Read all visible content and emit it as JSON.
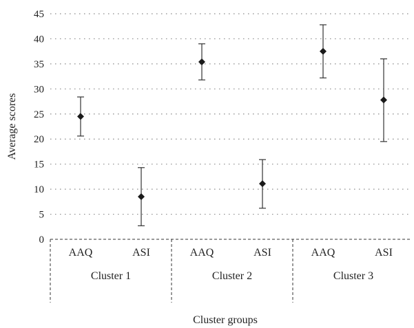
{
  "chart_data": {
    "type": "scatter",
    "xlabel": "Cluster groups",
    "ylabel": "Average scores",
    "ylim": [
      0,
      45
    ],
    "yticks": [
      0,
      5,
      10,
      15,
      20,
      25,
      30,
      35,
      40,
      45
    ],
    "grid": true,
    "groups": [
      "Cluster 1",
      "Cluster 2",
      "Cluster 3"
    ],
    "categories": [
      "AAQ",
      "ASI",
      "AAQ",
      "ASI",
      "AAQ",
      "ASI"
    ],
    "points": [
      {
        "group": "Cluster 1",
        "category": "AAQ",
        "mean": 24.5,
        "low": 20.6,
        "high": 28.4
      },
      {
        "group": "Cluster 1",
        "category": "ASI",
        "mean": 8.5,
        "low": 2.7,
        "high": 14.3
      },
      {
        "group": "Cluster 2",
        "category": "AAQ",
        "mean": 35.4,
        "low": 31.8,
        "high": 39.0
      },
      {
        "group": "Cluster 2",
        "category": "ASI",
        "mean": 11.1,
        "low": 6.2,
        "high": 15.9
      },
      {
        "group": "Cluster 3",
        "category": "AAQ",
        "mean": 37.5,
        "low": 32.2,
        "high": 42.8
      },
      {
        "group": "Cluster 3",
        "category": "ASI",
        "mean": 27.8,
        "low": 19.5,
        "high": 36.0
      }
    ]
  }
}
